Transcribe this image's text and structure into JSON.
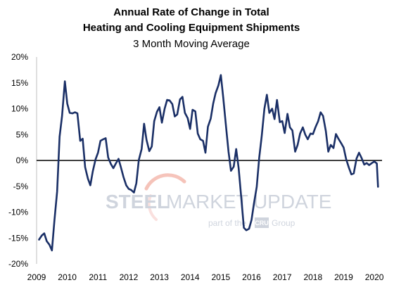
{
  "chart_data": {
    "type": "line",
    "title": "Annual Rate of Change in Total",
    "title_line2": "Heating and Cooling Equipment Shipments",
    "subtitle": "3 Month Moving Average",
    "xlabel": "",
    "ylabel": "",
    "xlim": [
      2009,
      2020.25
    ],
    "ylim": [
      -20,
      20
    ],
    "x_ticks": [
      2009,
      2010,
      2011,
      2012,
      2013,
      2014,
      2015,
      2016,
      2017,
      2018,
      2019,
      2020
    ],
    "x_tick_labels": [
      "2009",
      "2010",
      "2011",
      "2012",
      "2013",
      "2014",
      "2015",
      "2016",
      "2017",
      "2018",
      "2019",
      "2020"
    ],
    "y_ticks": [
      -20,
      -15,
      -10,
      -5,
      0,
      5,
      10,
      15,
      20
    ],
    "y_tick_labels": [
      "-20%",
      "-15%",
      "-10%",
      "-5%",
      "0%",
      "5%",
      "10%",
      "15%",
      "20%"
    ],
    "grid": false,
    "legend": "none",
    "line_color": "#1a2f66",
    "zero_line_color": "#000000",
    "series": [
      {
        "x": [
          2009.08,
          2009.17,
          2009.25,
          2009.33,
          2009.42,
          2009.5,
          2009.58,
          2009.67,
          2009.75,
          2009.83,
          2009.92,
          2010.0,
          2010.08,
          2010.17,
          2010.25,
          2010.33,
          2010.42,
          2010.5,
          2010.58,
          2010.67,
          2010.75,
          2010.83,
          2010.92,
          2011.0,
          2011.08,
          2011.17,
          2011.25,
          2011.33,
          2011.42,
          2011.5,
          2011.58,
          2011.67,
          2011.75,
          2011.83,
          2011.92,
          2012.0,
          2012.08,
          2012.17,
          2012.25,
          2012.33,
          2012.42,
          2012.5,
          2012.58,
          2012.67,
          2012.75,
          2012.83,
          2012.92,
          2013.0,
          2013.08,
          2013.17,
          2013.25,
          2013.33,
          2013.42,
          2013.5,
          2013.58,
          2013.67,
          2013.75,
          2013.83,
          2013.92,
          2014.0,
          2014.08,
          2014.17,
          2014.25,
          2014.33,
          2014.42,
          2014.5,
          2014.58,
          2014.67,
          2014.75,
          2014.83,
          2014.92,
          2015.0,
          2015.08,
          2015.17,
          2015.25,
          2015.33,
          2015.42,
          2015.5,
          2015.58,
          2015.67,
          2015.75,
          2015.83,
          2015.92,
          2016.0,
          2016.08,
          2016.17,
          2016.25,
          2016.33,
          2016.42,
          2016.5,
          2016.58,
          2016.67,
          2016.75,
          2016.83,
          2016.92,
          2017.0,
          2017.08,
          2017.17,
          2017.25,
          2017.33,
          2017.42,
          2017.5,
          2017.58,
          2017.67,
          2017.75,
          2017.83,
          2017.92,
          2018.0,
          2018.08,
          2018.17,
          2018.25,
          2018.33,
          2018.42,
          2018.5,
          2018.58,
          2018.67,
          2018.75,
          2018.83,
          2018.92,
          2019.0,
          2019.08,
          2019.17,
          2019.25,
          2019.33,
          2019.42,
          2019.5,
          2019.58,
          2019.67,
          2019.75,
          2019.83,
          2019.92,
          2020.0,
          2020.08,
          2020.12
        ],
        "values": [
          -15.3,
          -14.5,
          -14.1,
          -15.6,
          -16.3,
          -17.4,
          -11.7,
          -6.0,
          4.6,
          8.6,
          15.3,
          11.0,
          9.2,
          9.1,
          9.3,
          9.1,
          3.8,
          4.2,
          -1.3,
          -3.5,
          -4.8,
          -2.1,
          0.2,
          1.5,
          3.8,
          4.1,
          4.3,
          0.6,
          -0.7,
          -1.5,
          -0.6,
          0.3,
          -1.4,
          -3.2,
          -4.8,
          -5.5,
          -5.7,
          -6.2,
          -4.4,
          0.1,
          2.2,
          7.1,
          4.0,
          1.8,
          2.7,
          7.6,
          9.4,
          10.3,
          7.3,
          10.0,
          11.7,
          11.6,
          10.9,
          8.5,
          8.9,
          11.8,
          12.3,
          9.2,
          8.2,
          6.1,
          9.8,
          9.5,
          5.2,
          4.1,
          3.8,
          1.5,
          6.5,
          8.1,
          11.0,
          13.0,
          14.5,
          16.5,
          12.0,
          6.5,
          1.7,
          -2.0,
          -1.2,
          2.2,
          -1.5,
          -7.5,
          -13.0,
          -13.5,
          -13.2,
          -11.5,
          -8.3,
          -5.1,
          0.5,
          4.6,
          10.0,
          12.7,
          9.2,
          10.0,
          8.0,
          11.7,
          7.4,
          7.6,
          5.3,
          9.0,
          6.4,
          5.8,
          1.7,
          3.0,
          5.2,
          6.4,
          5.0,
          4.1,
          5.2,
          5.1,
          6.4,
          7.6,
          9.3,
          8.6,
          5.7,
          1.7,
          3.0,
          2.4,
          5.1,
          4.2,
          3.3,
          2.5,
          0.3,
          -1.4,
          -2.7,
          -2.5,
          0.4,
          1.5,
          0.5,
          -0.8,
          -0.5,
          -0.9,
          -0.5,
          -0.2,
          -0.6,
          -5.1
        ]
      }
    ]
  },
  "watermark": {
    "brand_left": "STEEL",
    "brand_right": "MARKET UPDATE",
    "tagline": "part of the",
    "tagline_end": "Group",
    "badge": "CRU"
  }
}
